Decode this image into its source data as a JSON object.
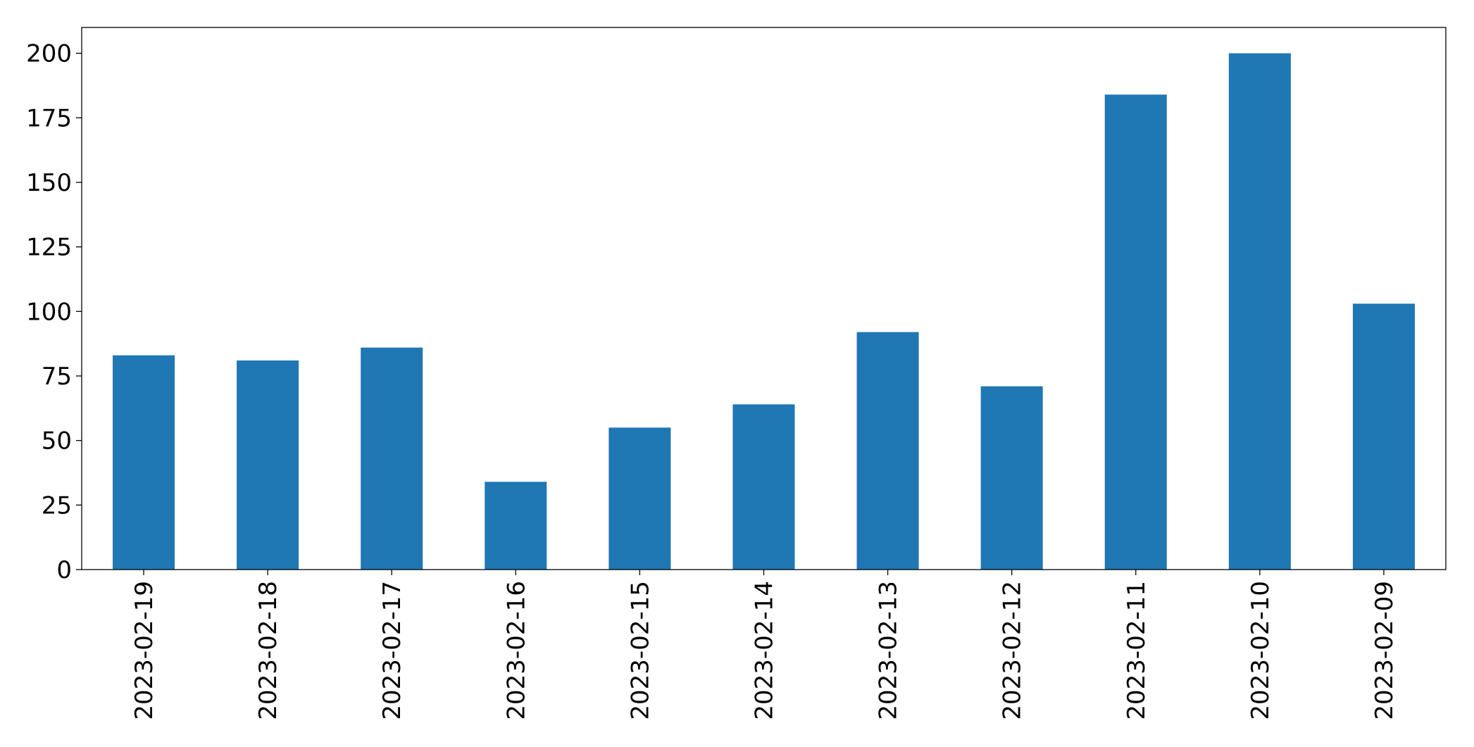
{
  "chart_data": {
    "type": "bar",
    "categories": [
      "2023-02-19",
      "2023-02-18",
      "2023-02-17",
      "2023-02-16",
      "2023-02-15",
      "2023-02-14",
      "2023-02-13",
      "2023-02-12",
      "2023-02-11",
      "2023-02-10",
      "2023-02-09"
    ],
    "values": [
      83,
      81,
      86,
      34,
      55,
      64,
      92,
      71,
      184,
      200,
      103
    ],
    "color": "#1f77b4",
    "ylim": [
      0,
      210
    ],
    "yticks": [
      0,
      25,
      50,
      75,
      100,
      125,
      150,
      175,
      200
    ],
    "grid": false
  }
}
